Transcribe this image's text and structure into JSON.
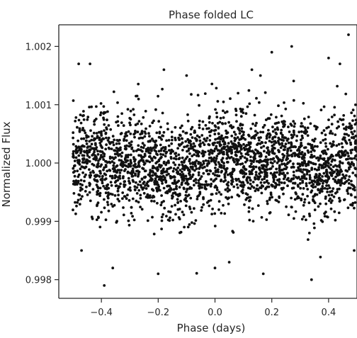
{
  "chart_data": {
    "type": "scatter",
    "title": "Phase folded LC",
    "xlabel": "Phase (days)",
    "ylabel": "Normalized Flux",
    "xlim": [
      -0.55,
      0.5
    ],
    "ylim": [
      0.99768,
      1.00237
    ],
    "x_ticks": [
      -0.4,
      -0.2,
      0.0,
      0.2,
      0.4
    ],
    "x_tick_labels": [
      "−0.4",
      "−0.2",
      "0.0",
      "0.2",
      "0.4"
    ],
    "y_ticks": [
      0.998,
      0.999,
      1.0,
      1.001,
      1.002
    ],
    "y_tick_labels": [
      "0.998",
      "0.999",
      "1.000",
      "1.001",
      "1.002"
    ],
    "grid": false,
    "legend": "none",
    "colors": {
      "points": "#111111",
      "axes": "#262626",
      "background": "#ffffff"
    },
    "series": [
      {
        "x_range": [
          -0.5,
          0.5
        ],
        "points_sample": [
          [
            -0.48,
            1.0017
          ],
          [
            -0.44,
            1.0017
          ],
          [
            -0.47,
            0.9985
          ],
          [
            -0.39,
            0.9979
          ],
          [
            -0.36,
            0.9982
          ],
          [
            -0.18,
            1.0016
          ],
          [
            -0.2,
            0.9981
          ],
          [
            0.0,
            0.9982
          ],
          [
            0.05,
            0.9983
          ],
          [
            0.17,
            0.9981
          ],
          [
            0.13,
            1.0016
          ],
          [
            0.16,
            1.0015
          ],
          [
            0.2,
            1.0019
          ],
          [
            0.27,
            1.002
          ],
          [
            0.34,
            0.998
          ],
          [
            0.4,
            1.0018
          ],
          [
            0.44,
            1.0017
          ],
          [
            0.47,
            1.0022
          ],
          [
            0.49,
            0.9985
          ],
          [
            -0.1,
            1.0015
          ]
        ]
      }
    ]
  }
}
